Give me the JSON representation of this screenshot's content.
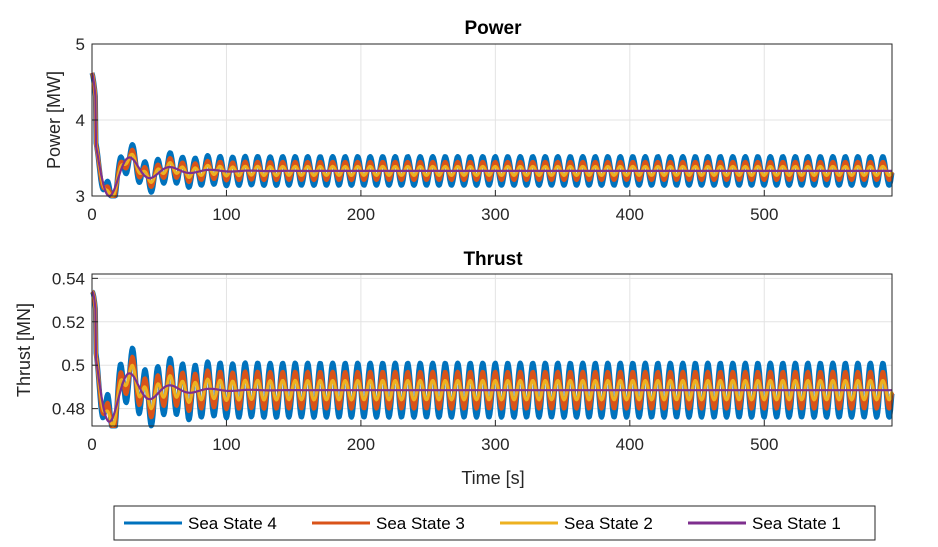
{
  "chart_data": [
    {
      "type": "line",
      "title": "Power",
      "xlabel": "",
      "ylabel": "Power [MW]",
      "xlim": [
        0,
        595
      ],
      "ylim": [
        3,
        5
      ],
      "xticks": [
        0,
        100,
        200,
        300,
        400,
        500
      ],
      "yticks": [
        3,
        4,
        5
      ],
      "grid": true,
      "series": [
        {
          "name": "Sea State 4",
          "color": "#0072BD",
          "start": 4.62,
          "mean": 3.33,
          "trans_amp": 1.05,
          "osc_amp": 0.19,
          "osc_period": 9.3
        },
        {
          "name": "Sea State 3",
          "color": "#D95319",
          "start": 4.62,
          "mean": 3.33,
          "trans_amp": 1.05,
          "osc_amp": 0.12,
          "osc_period": 9.3
        },
        {
          "name": "Sea State 2",
          "color": "#EDB120",
          "start": 4.62,
          "mean": 3.33,
          "trans_amp": 1.05,
          "osc_amp": 0.06,
          "osc_period": 9.3
        },
        {
          "name": "Sea State 1",
          "color": "#7E2F8E",
          "start": 4.62,
          "mean": 3.33,
          "trans_amp": 1.05,
          "osc_amp": 0.0,
          "osc_period": 9.3
        }
      ]
    },
    {
      "type": "line",
      "title": "Thrust",
      "xlabel": "Time [s]",
      "ylabel": "Thrust [MN]",
      "xlim": [
        0,
        595
      ],
      "ylim": [
        0.472,
        0.542
      ],
      "xticks": [
        0,
        100,
        200,
        300,
        400,
        500
      ],
      "yticks": [
        0.48,
        0.5,
        0.52,
        0.54
      ],
      "ytick_labels": [
        "0.48",
        "0.5",
        "0.52",
        "0.54"
      ],
      "grid": true,
      "series": [
        {
          "name": "Sea State 4",
          "color": "#0072BD",
          "start": 0.534,
          "mean": 0.4885,
          "trans_amp": 0.046,
          "osc_amp": 0.0125,
          "osc_period": 9.3
        },
        {
          "name": "Sea State 3",
          "color": "#D95319",
          "start": 0.534,
          "mean": 0.4885,
          "trans_amp": 0.046,
          "osc_amp": 0.0085,
          "osc_period": 9.3
        },
        {
          "name": "Sea State 2",
          "color": "#EDB120",
          "start": 0.534,
          "mean": 0.4885,
          "trans_amp": 0.046,
          "osc_amp": 0.0045,
          "osc_period": 9.3
        },
        {
          "name": "Sea State 1",
          "color": "#7E2F8E",
          "start": 0.534,
          "mean": 0.4885,
          "trans_amp": 0.046,
          "osc_amp": 0.0,
          "osc_period": 9.3
        }
      ]
    }
  ],
  "legend": {
    "placement": "bottom",
    "items": [
      {
        "label": "Sea State 4",
        "color": "#0072BD"
      },
      {
        "label": "Sea State 3",
        "color": "#D95319"
      },
      {
        "label": "Sea State 2",
        "color": "#EDB120"
      },
      {
        "label": "Sea State 1",
        "color": "#7E2F8E"
      }
    ]
  }
}
